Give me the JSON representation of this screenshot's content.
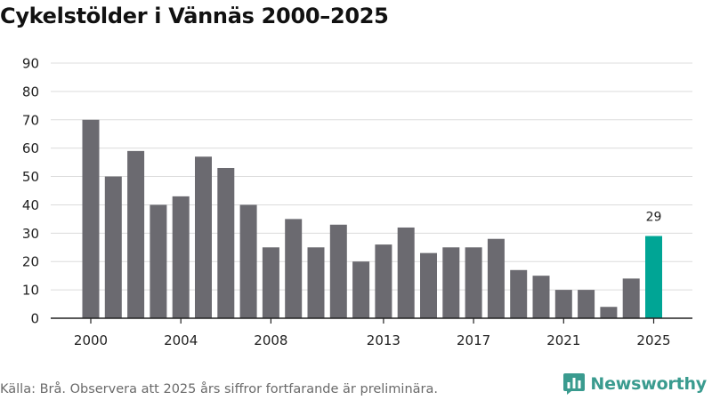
{
  "title": "Cykelstölder i Vännäs 2000–2025",
  "source": "Källa: Brå. Observera att 2025 års siffror fortfarande är preliminära.",
  "brand": {
    "name": "Newsworthy",
    "icon": "newsworthy-logo-icon",
    "color": "#3a9b8f"
  },
  "colors": {
    "bar": "#6b6a70",
    "highlight": "#00a595",
    "grid": "#dcdcdc",
    "axis": "#222222"
  },
  "chart_data": {
    "type": "bar",
    "title": "Cykelstölder i Vännäs 2000–2025",
    "xlabel": "",
    "ylabel": "",
    "ylim": [
      0,
      90
    ],
    "yticks": [
      0,
      10,
      20,
      30,
      40,
      50,
      60,
      70,
      80,
      90
    ],
    "grid": true,
    "legend": "none",
    "categories": [
      2000,
      2001,
      2002,
      2003,
      2004,
      2005,
      2006,
      2007,
      2008,
      2009,
      2010,
      2011,
      2012,
      2013,
      2014,
      2015,
      2016,
      2017,
      2018,
      2019,
      2020,
      2021,
      2022,
      2023,
      2024,
      2025
    ],
    "values": [
      70,
      50,
      59,
      40,
      43,
      57,
      53,
      40,
      25,
      35,
      25,
      33,
      20,
      26,
      32,
      23,
      25,
      25,
      28,
      17,
      15,
      10,
      10,
      4,
      14,
      29
    ],
    "xtick_labels": [
      "2000",
      "2004",
      "2008",
      "2013",
      "2017",
      "2021",
      "2025"
    ],
    "highlight": {
      "category": 2025,
      "label": "29"
    }
  }
}
